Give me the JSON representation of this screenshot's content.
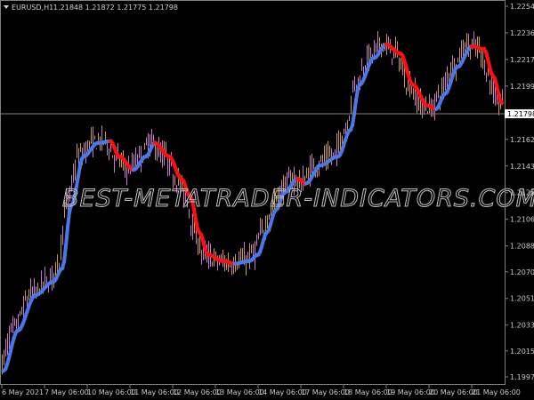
{
  "header": {
    "symbol": "EURUSD,H1",
    "ohlc": "1.21848 1.21872 1.21775 1.21798"
  },
  "watermark": "BEST-METATRADER-INDICATORS.COM",
  "colors": {
    "background": "#000000",
    "bull_bar": "#c8a032",
    "bear_bar": "#c878c8",
    "ma_up": "#4a78e8",
    "ma_down": "#ff1010",
    "price_line": "#808080",
    "axis": "#808080"
  },
  "chart_data": {
    "type": "line",
    "title": "EURUSD,H1",
    "price_axis_ticks": [
      "1.22545",
      "1.22360",
      "1.22175",
      "1.21990",
      "1.21620",
      "1.21435",
      "1.21250",
      "1.21065",
      "1.20880",
      "1.20700",
      "1.20515",
      "1.20330",
      "1.20150",
      "1.19970"
    ],
    "ylim": [
      1.1997,
      1.22545
    ],
    "current_price": "1.21798",
    "time_axis_ticks": [
      "6 May 2021",
      "7 May 06:00",
      "10 May 06:00",
      "11 May 06:00",
      "12 May 06:00",
      "13 May 06:00",
      "14 May 06:00",
      "17 May 06:00",
      "18 May 06:00",
      "19 May 06:00",
      "20 May 06:00",
      "21 May 06:00"
    ],
    "indicator_series": {
      "bar_index": [
        2,
        10,
        20,
        30,
        35,
        40,
        47,
        55,
        62,
        67,
        75,
        82,
        87,
        95,
        102,
        107,
        112,
        117,
        125,
        132,
        140,
        145,
        150,
        155,
        160,
        167,
        172,
        180,
        190,
        197,
        202,
        210,
        217,
        225,
        232,
        240,
        245,
        250,
        257,
        265,
        272,
        277,
        282
      ],
      "price": [
        1.20012,
        1.20291,
        1.20539,
        1.20632,
        1.20725,
        1.2116,
        1.21502,
        1.21595,
        1.21607,
        1.21502,
        1.21409,
        1.21502,
        1.21595,
        1.21502,
        1.21346,
        1.21222,
        1.20974,
        1.20819,
        1.20775,
        1.20757,
        1.20775,
        1.20819,
        1.20974,
        1.21129,
        1.21253,
        1.21346,
        1.21315,
        1.2144,
        1.21502,
        1.21688,
        1.21999,
        1.22185,
        1.22278,
        1.22216,
        1.22,
        1.21856,
        1.21831,
        1.21936,
        1.22123,
        1.22266,
        1.22247,
        1.22061,
        1.21874
      ]
    }
  }
}
